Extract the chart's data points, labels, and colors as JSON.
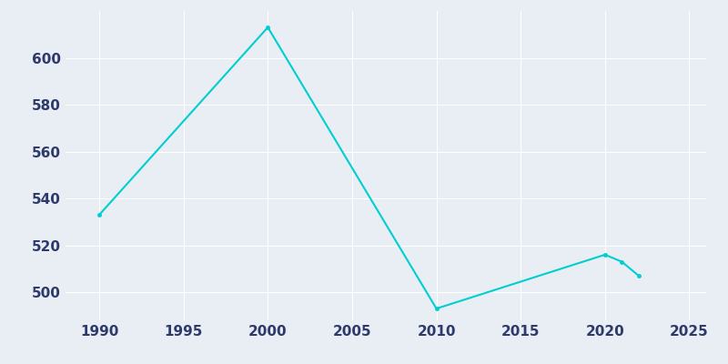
{
  "years": [
    1990,
    2000,
    2010,
    2020,
    2021,
    2022
  ],
  "population": [
    533,
    613,
    493,
    516,
    513,
    507
  ],
  "line_color": "#00CED1",
  "bg_color": "#E8EEF4",
  "grid_color": "#FFFFFF",
  "xlim": [
    1988,
    2026
  ],
  "ylim": [
    488,
    620
  ],
  "xticks": [
    1990,
    1995,
    2000,
    2005,
    2010,
    2015,
    2020,
    2025
  ],
  "yticks": [
    500,
    520,
    540,
    560,
    580,
    600
  ],
  "tick_label_color": "#2D3A6B",
  "linewidth": 1.5,
  "figsize": [
    8.0,
    4.0
  ],
  "dpi": 100
}
